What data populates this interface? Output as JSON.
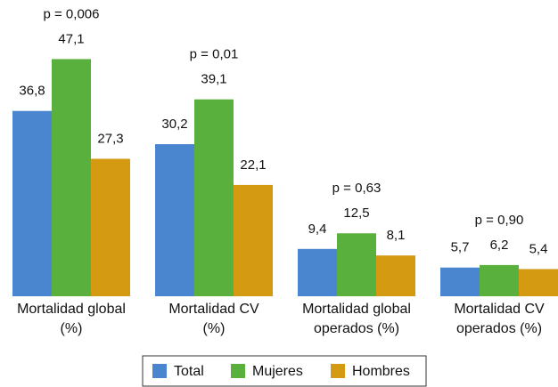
{
  "chart_data": {
    "type": "bar",
    "categories": [
      [
        "Mortalidad global",
        "(%)"
      ],
      [
        "Mortalidad CV",
        "(%)"
      ],
      [
        "Mortalidad global",
        "operados (%)"
      ],
      [
        "Mortalidad CV",
        "operados (%)"
      ]
    ],
    "annotations": [
      "p = 0,006",
      "p = 0,01",
      "p = 0,63",
      "p = 0,90"
    ],
    "series": [
      {
        "name": "Total",
        "color": "#4a86cf",
        "values": [
          36.8,
          30.2,
          9.4,
          5.7
        ],
        "value_labels": [
          "36,8",
          "30,2",
          "9,4",
          "5,7"
        ]
      },
      {
        "name": "Mujeres",
        "color": "#5ab03c",
        "values": [
          47.1,
          39.1,
          12.5,
          6.2
        ],
        "value_labels": [
          "47,1",
          "39,1",
          "12,5",
          "6,2"
        ]
      },
      {
        "name": "Hombres",
        "color": "#d39a12",
        "values": [
          27.3,
          22.1,
          8.1,
          5.4
        ],
        "value_labels": [
          "27,3",
          "22,1",
          "8,1",
          "5,4"
        ]
      }
    ],
    "ylim": [
      0,
      50
    ],
    "legend": "bottom"
  }
}
